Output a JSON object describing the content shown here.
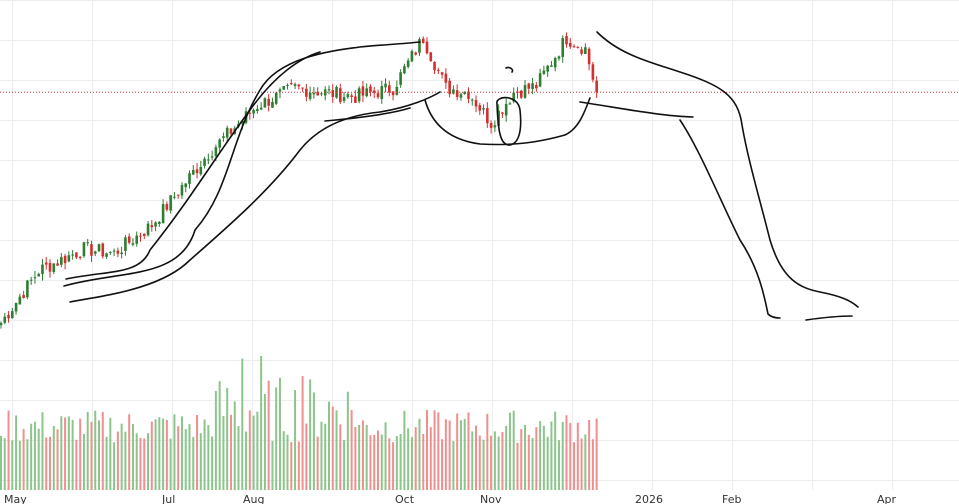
{
  "colors": {
    "up": "#2e7d32",
    "down": "#d32f2f",
    "volume_up": "#8cc58c",
    "volume_down": "#ef8f8f",
    "grid": "#ededed",
    "price_line": "#d32f2f",
    "annotation": "#111111"
  },
  "chart_data": {
    "type": "candlestick",
    "title": "",
    "xlabel": "",
    "ylabel": "",
    "x_tick_labels": [
      "May",
      "Jul",
      "Aug",
      "Oct",
      "Nov",
      "2026",
      "Feb",
      "Apr"
    ],
    "grid": true,
    "current_price_line": true,
    "price_level_hint": "dotted horizontal line at last close",
    "anchors": [
      {
        "i": 0,
        "p": 18
      },
      {
        "i": 10,
        "p": 42
      },
      {
        "i": 22,
        "p": 52
      },
      {
        "i": 30,
        "p": 50
      },
      {
        "i": 40,
        "p": 63
      },
      {
        "i": 55,
        "p": 96
      },
      {
        "i": 68,
        "p": 118
      },
      {
        "i": 78,
        "p": 126
      },
      {
        "i": 86,
        "p": 124
      },
      {
        "i": 94,
        "p": 122
      },
      {
        "i": 104,
        "p": 126
      },
      {
        "i": 112,
        "p": 149
      },
      {
        "i": 118,
        "p": 126
      },
      {
        "i": 124,
        "p": 124
      },
      {
        "i": 130,
        "p": 110
      },
      {
        "i": 136,
        "p": 124
      },
      {
        "i": 142,
        "p": 127
      },
      {
        "i": 150,
        "p": 149
      },
      {
        "i": 155,
        "p": 144
      },
      {
        "i": 158,
        "p": 124
      }
    ],
    "volume_range": [
      30,
      100
    ],
    "candle_count": 159,
    "annotation": "hand-drawn outline of rising trend, rounded top, and projected decline"
  }
}
